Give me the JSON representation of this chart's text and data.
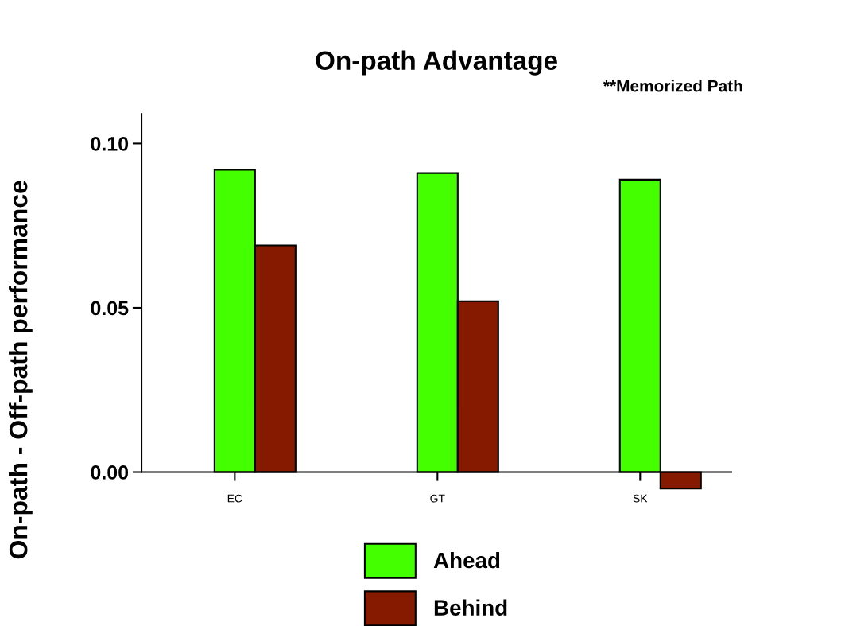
{
  "chart_data": {
    "type": "bar",
    "title": "On-path Advantage",
    "ylabel": "On-path - Off-path performance",
    "annotations": [
      "**Memorized Path"
    ],
    "categories": [
      "EC",
      "GT",
      "SK"
    ],
    "series": [
      {
        "name": "Ahead",
        "color": "#44ff00",
        "values": [
          0.092,
          0.091,
          0.089
        ]
      },
      {
        "name": "Behind",
        "color": "#851a00",
        "values": [
          0.069,
          0.052,
          -0.005
        ]
      }
    ],
    "ylim": [
      -0.0055,
      0.109
    ],
    "yticks": [
      {
        "value": 0,
        "label": "0.00"
      },
      {
        "value": 0.05,
        "label": "0.05"
      },
      {
        "value": 0.1,
        "label": "0.10"
      }
    ],
    "grid": false,
    "legend": "bottom"
  }
}
